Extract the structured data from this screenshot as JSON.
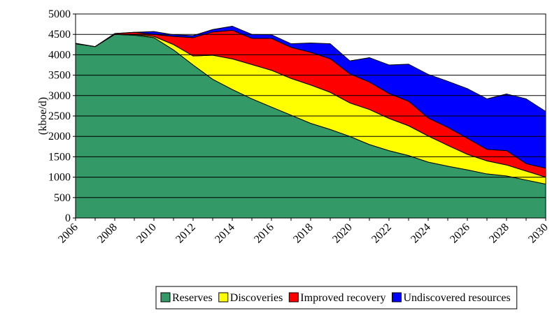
{
  "chart_data": {
    "type": "stacked_area",
    "y_label": "(kboe/d)",
    "categories": [
      "2006",
      null,
      "2008",
      null,
      "2010",
      null,
      "2012",
      null,
      "2014",
      null,
      "2016",
      null,
      "2018",
      null,
      "2020",
      null,
      "2022",
      null,
      "2024",
      null,
      "2026",
      null,
      "2028",
      null,
      "2030"
    ],
    "series": [
      {
        "name": "Reserves",
        "color": "#339966",
        "values": [
          4270,
          4200,
          4500,
          4480,
          4420,
          4120,
          3750,
          3400,
          3150,
          2920,
          2720,
          2520,
          2320,
          2170,
          2000,
          1800,
          1650,
          1530,
          1370,
          1270,
          1180,
          1080,
          1030,
          930,
          830
        ]
      },
      {
        "name": "Discoveries",
        "color": "#ffff00",
        "values": [
          0,
          0,
          0,
          20,
          30,
          130,
          220,
          590,
          750,
          840,
          900,
          900,
          940,
          910,
          820,
          860,
          790,
          730,
          640,
          510,
          380,
          320,
          270,
          220,
          170
        ]
      },
      {
        "name": "Improved recovery",
        "color": "#ff0000",
        "values": [
          10,
          0,
          20,
          50,
          50,
          200,
          450,
          570,
          700,
          640,
          780,
          760,
          800,
          820,
          710,
          670,
          610,
          600,
          440,
          440,
          390,
          280,
          350,
          180,
          220
        ]
      },
      {
        "name": "Undiscovered resources",
        "color": "#0000ff",
        "values": [
          0,
          0,
          0,
          0,
          70,
          40,
          50,
          60,
          100,
          100,
          90,
          90,
          230,
          370,
          320,
          600,
          700,
          910,
          1070,
          1130,
          1220,
          1240,
          1390,
          1590,
          1390
        ]
      }
    ],
    "ylim": [
      0,
      5000
    ],
    "yticks": [
      0,
      500,
      1000,
      1500,
      2000,
      2500,
      3000,
      3500,
      4000,
      4500,
      5000
    ],
    "grid": true
  }
}
